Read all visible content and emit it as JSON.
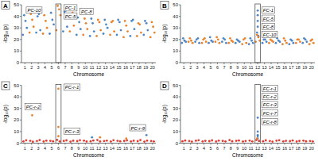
{
  "chart_data": [
    {
      "type": "scatter",
      "title": "A",
      "x_label": "Chromosome",
      "y_label": "-log₁₀(p)",
      "xlim": [
        0.5,
        20.5
      ],
      "xticks": [
        1,
        2,
        3,
        4,
        5,
        6,
        7,
        8,
        9,
        10,
        11,
        12,
        13,
        14,
        15,
        16,
        17,
        18,
        19,
        20
      ],
      "ylim": [
        0,
        50
      ],
      "yticks": [
        0,
        10,
        20,
        30,
        40,
        50
      ],
      "grid": false,
      "marker": "circle",
      "highlight": [
        5.6,
        6.4
      ],
      "series": [
        {
          "color": "#4f86c6",
          "x": [
            0.7,
            0.9,
            1.1,
            1.3,
            2.7,
            2.9,
            3.1,
            3.3,
            4.7,
            4.9,
            5.1,
            5.3,
            6.7,
            6.9,
            7.1,
            7.3,
            8.7,
            8.9,
            9.1,
            9.3,
            10.7,
            10.9,
            11.1,
            11.3,
            12.7,
            12.9,
            13.1,
            13.3,
            14.7,
            14.9,
            15.1,
            15.3,
            16.7,
            16.9,
            17.1,
            17.3,
            18.7,
            18.9,
            19.1,
            19.3
          ],
          "values": [
            24,
            41,
            36,
            30,
            26,
            40,
            42,
            28,
            25,
            43,
            37,
            33,
            27,
            44,
            45,
            31,
            24,
            39,
            35,
            29,
            23,
            38,
            34,
            27,
            25,
            37,
            33,
            30,
            24,
            37,
            35,
            28,
            23,
            36,
            37,
            29,
            24,
            36,
            34,
            28
          ]
        },
        {
          "color": "#e8832e",
          "x": [
            1.7,
            1.9,
            2.1,
            2.3,
            3.7,
            3.9,
            4.1,
            4.3,
            5.7,
            5.9,
            6.1,
            6.3,
            7.7,
            7.9,
            8.1,
            8.3,
            9.7,
            9.9,
            10.1,
            10.3,
            11.7,
            11.9,
            12.1,
            12.3,
            13.7,
            13.9,
            14.1,
            14.3,
            15.7,
            15.9,
            16.1,
            16.3,
            17.7,
            17.9,
            18.1,
            18.3,
            19.7,
            19.9,
            20.1,
            20.3
          ],
          "values": [
            26,
            42,
            37,
            31,
            25,
            41,
            36,
            30,
            28,
            49,
            46,
            41,
            27,
            40,
            43,
            32,
            24,
            38,
            34,
            29,
            23,
            37,
            35,
            28,
            24,
            35,
            36,
            27,
            22,
            36,
            32,
            27,
            23,
            34,
            33,
            26,
            22,
            35,
            31,
            26
          ]
        }
      ],
      "annotations": [
        {
          "text": "PC-10",
          "x": 1.2,
          "y": 45
        },
        {
          "text": "PC-1",
          "x": 6.8,
          "y": 47
        },
        {
          "text": "PC-5",
          "x": 6.8,
          "y": 40
        },
        {
          "text": "PC-8",
          "x": 9.2,
          "y": 44
        }
      ]
    },
    {
      "type": "scatter",
      "title": "B",
      "x_label": "Chromosome",
      "y_label": "-log₁₀(p)",
      "xlim": [
        0.5,
        20.5
      ],
      "xticks": [
        1,
        2,
        3,
        4,
        5,
        6,
        7,
        8,
        9,
        10,
        11,
        12,
        13,
        14,
        15,
        16,
        17,
        18,
        19,
        20
      ],
      "ylim": [
        0,
        50
      ],
      "yticks": [
        0,
        10,
        20,
        30,
        40,
        50
      ],
      "grid": false,
      "marker": "circle",
      "highlight": [
        11.6,
        12.4
      ],
      "series": [
        {
          "color": "#4f86c6",
          "x": [
            0.7,
            0.9,
            1.1,
            1.3,
            2.7,
            2.9,
            3.1,
            3.3,
            4.7,
            4.9,
            5.1,
            5.3,
            6.7,
            6.9,
            7.1,
            7.3,
            8.7,
            8.9,
            9.1,
            9.3,
            10.7,
            10.9,
            11.1,
            11.3,
            12.7,
            12.9,
            13.1,
            13.3,
            14.7,
            14.9,
            15.1,
            15.3,
            16.7,
            16.9,
            17.1,
            17.3,
            18.7,
            18.9,
            19.1,
            19.3,
            11.9,
            12.0,
            12.0,
            12.0,
            12.0,
            12.1
          ],
          "values": [
            17,
            21,
            19,
            18,
            18,
            20,
            21,
            17,
            17,
            22,
            19,
            18,
            18,
            21,
            20,
            17,
            17,
            20,
            19,
            18,
            16,
            21,
            19,
            17,
            17,
            20,
            20,
            18,
            17,
            21,
            19,
            18,
            16,
            20,
            19,
            17,
            17,
            21,
            20,
            18,
            26,
            31,
            36,
            41,
            45,
            23
          ]
        },
        {
          "color": "#e8832e",
          "x": [
            1.7,
            1.9,
            2.1,
            2.3,
            3.7,
            3.9,
            4.1,
            4.3,
            5.7,
            5.9,
            6.1,
            6.3,
            7.7,
            7.9,
            8.1,
            8.3,
            9.7,
            9.9,
            10.1,
            10.3,
            11.7,
            11.9,
            12.1,
            12.3,
            13.7,
            13.9,
            14.1,
            14.3,
            15.7,
            15.9,
            16.1,
            16.3,
            17.7,
            17.9,
            18.1,
            18.3,
            19.7,
            19.9,
            20.1,
            20.3
          ],
          "values": [
            18,
            21,
            19,
            17,
            17,
            20,
            21,
            18,
            18,
            22,
            20,
            17,
            17,
            21,
            19,
            18,
            16,
            20,
            21,
            17,
            18,
            24,
            22,
            19,
            17,
            20,
            19,
            18,
            16,
            21,
            19,
            17,
            17,
            20,
            20,
            18,
            16,
            19,
            20,
            17
          ]
        }
      ],
      "annotations": [
        {
          "text": "FC-1",
          "x": 12.6,
          "y": 45
        },
        {
          "text": "FC-5",
          "x": 12.6,
          "y": 38
        },
        {
          "text": "FC-8",
          "x": 12.6,
          "y": 31
        },
        {
          "text": "FC-10",
          "x": 12.6,
          "y": 24
        }
      ]
    },
    {
      "type": "scatter",
      "title": "C",
      "x_label": "Chromosome",
      "y_label": "-log₁₀(p)",
      "xlim": [
        0.5,
        20.5
      ],
      "xticks": [
        1,
        2,
        3,
        4,
        5,
        6,
        7,
        8,
        9,
        10,
        11,
        12,
        13,
        14,
        15,
        16,
        17,
        18,
        19,
        20
      ],
      "ylim": [
        0,
        50
      ],
      "yticks": [
        0,
        10,
        20,
        30,
        40,
        50
      ],
      "grid": false,
      "marker": "circle",
      "highlight": [
        5.6,
        6.4
      ],
      "series": [
        {
          "color": "#e03a2f",
          "x": [
            0.8,
            1.2,
            1.8,
            2.2,
            2.8,
            3.2,
            3.8,
            4.2,
            4.8,
            5.2,
            5.8,
            6.2,
            6.8,
            7.2,
            7.8,
            8.2,
            8.8,
            9.2,
            9.8,
            10.2,
            10.8,
            11.2,
            11.8,
            12.2,
            12.8,
            13.2,
            13.8,
            14.2,
            14.8,
            15.2,
            15.8,
            16.2,
            16.8,
            17.2,
            17.8,
            18.2,
            18.8,
            19.2,
            19.8,
            20.2
          ],
          "values": [
            1.5,
            2.5,
            2,
            1.2,
            1.8,
            2.6,
            1.4,
            2.2,
            2,
            1.6,
            2.8,
            1.5,
            1.9,
            2.4,
            1.3,
            2.1,
            1.7,
            2.5,
            2.2,
            1.4,
            1.6,
            2.3,
            2.7,
            1.5,
            1.8,
            2.2,
            1.4,
            2.5,
            2,
            1.6,
            1.9,
            2.4,
            1.5,
            2.1,
            1.7,
            2.6,
            1.3,
            2.2,
            1.8,
            1.5
          ]
        },
        {
          "color": "#4f86c6",
          "x": [
            11.0,
            19.1
          ],
          "values": [
            5,
            7
          ]
        },
        {
          "color": "#e8832e",
          "x": [
            2.1,
            6.0,
            6.0,
            6.0,
            12.2,
            16.1
          ],
          "values": [
            24,
            47,
            14,
            6,
            5,
            4
          ]
        }
      ],
      "annotations": [
        {
          "text": "PC-r-1",
          "x": 6.8,
          "y": 48
        },
        {
          "text": "PC-r-2",
          "x": 1.0,
          "y": 31
        },
        {
          "text": "PC-r-3",
          "x": 6.8,
          "y": 10
        },
        {
          "text": "PC-r-9",
          "x": 16.6,
          "y": 13
        }
      ]
    },
    {
      "type": "scatter",
      "title": "D",
      "x_label": "Chromosome",
      "y_label": "-log₁₀(p)",
      "xlim": [
        0.5,
        20.5
      ],
      "xticks": [
        1,
        2,
        3,
        4,
        5,
        6,
        7,
        8,
        9,
        10,
        11,
        12,
        13,
        14,
        15,
        16,
        17,
        18,
        19,
        20
      ],
      "ylim": [
        0,
        50
      ],
      "yticks": [
        0,
        10,
        20,
        30,
        40,
        50
      ],
      "grid": false,
      "marker": "circle",
      "highlight": [
        11.6,
        12.4
      ],
      "series": [
        {
          "color": "#e03a2f",
          "x": [
            0.8,
            1.2,
            1.8,
            2.2,
            2.8,
            3.2,
            3.8,
            4.2,
            4.8,
            5.2,
            5.8,
            6.2,
            6.8,
            7.2,
            7.8,
            8.2,
            8.8,
            9.2,
            9.8,
            10.2,
            10.8,
            11.2,
            11.8,
            12.2,
            12.8,
            13.2,
            13.8,
            14.2,
            14.8,
            15.2,
            15.8,
            16.2,
            16.8,
            17.2,
            17.8,
            18.2,
            18.8,
            19.2,
            19.8,
            20.2
          ],
          "values": [
            1.6,
            2.3,
            1.8,
            1.3,
            2.1,
            2.5,
            1.5,
            2,
            1.7,
            2.4,
            1.4,
            2.2,
            1.9,
            1.5,
            2.6,
            1.6,
            2,
            2.3,
            1.4,
            1.8,
            2.2,
            1.5,
            2.7,
            1.9,
            1.6,
            2.4,
            1.8,
            1.3,
            2.1,
            2.5,
            1.5,
            2,
            1.7,
            2.3,
            1.4,
            1.9,
            2.2,
            1.6,
            1.8,
            1.4
          ]
        },
        {
          "color": "#4f86c6",
          "x": [
            12.0,
            12.0,
            12.0,
            12.0,
            12.0
          ],
          "values": [
            22,
            10,
            7,
            6,
            4
          ]
        },
        {
          "color": "#e8832e",
          "x": [
            11.9
          ],
          "values": [
            4
          ]
        }
      ],
      "annotations": [
        {
          "text": "FC-r-1",
          "x": 12.6,
          "y": 47
        },
        {
          "text": "FC-r-2",
          "x": 12.6,
          "y": 40
        },
        {
          "text": "FC-r-3",
          "x": 12.6,
          "y": 33
        },
        {
          "text": "FC-r-7",
          "x": 12.6,
          "y": 26
        },
        {
          "text": "FC-r-8",
          "x": 12.6,
          "y": 18
        }
      ]
    }
  ]
}
